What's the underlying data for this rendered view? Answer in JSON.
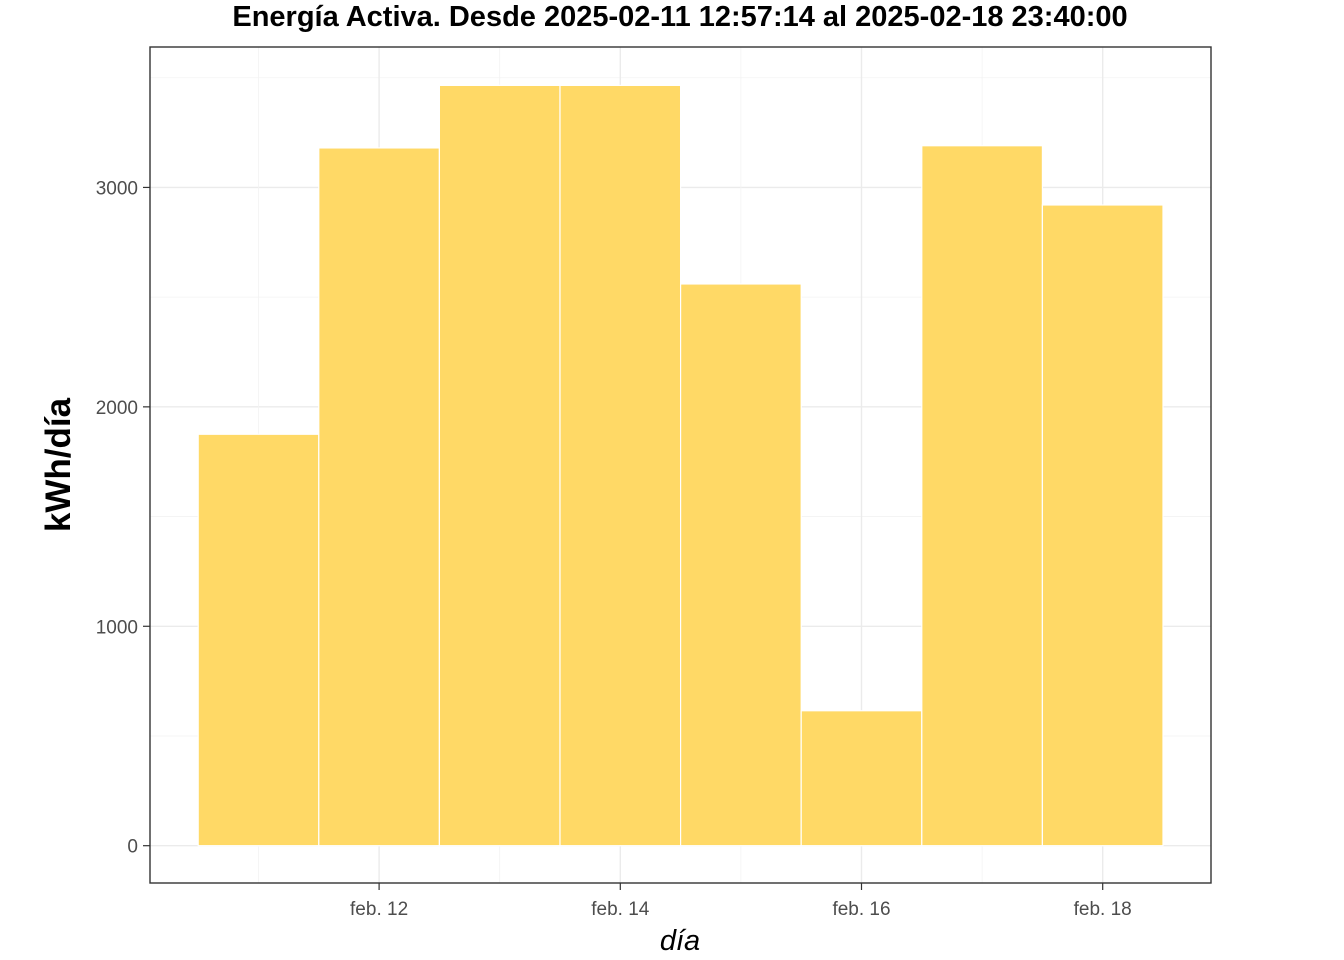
{
  "chart_data": {
    "type": "bar",
    "title": "Energía Activa. Desde  2025-02-11 12:57:14  al  2025-02-18 23:40:00",
    "xlabel": "día",
    "ylabel": "kWh/día",
    "x_tick_labels": [
      "feb. 12",
      "feb. 14",
      "feb. 16",
      "feb. 18"
    ],
    "y_tick_labels": [
      "0",
      "1000",
      "2000",
      "3000"
    ],
    "y_ticks": [
      0,
      1000,
      2000,
      3000
    ],
    "categories": [
      "2025-02-11",
      "2025-02-12",
      "2025-02-13",
      "2025-02-14",
      "2025-02-15",
      "2025-02-16",
      "2025-02-17",
      "2025-02-18"
    ],
    "values": [
      1875,
      3180,
      3465,
      3465,
      2560,
      615,
      3190,
      2920
    ],
    "ylim": [
      -170,
      3640
    ],
    "grid": true,
    "bar_color": "#ffd966",
    "bar_edge_color": "#ffffff"
  }
}
